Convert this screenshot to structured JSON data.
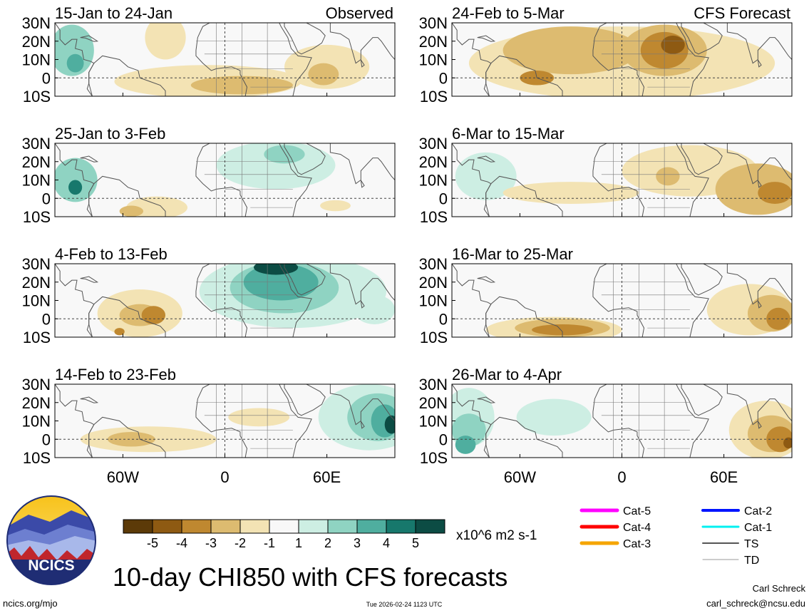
{
  "chart_data": {
    "type": "heatmap",
    "title": "10-day CHI850 with CFS forecasts",
    "colorbar": {
      "ticks": [
        "-5",
        "-4",
        "-3",
        "-2",
        "-1",
        "1",
        "2",
        "3",
        "4",
        "5"
      ],
      "unit": "x10^6 m2 s-1",
      "colors": [
        "#5c3a08",
        "#8e5a12",
        "#bf8830",
        "#ddbb70",
        "#f3e3b4",
        "#f8f8f8",
        "#cdeee3",
        "#8fd3c2",
        "#4fae9f",
        "#17786c",
        "#0c4c44"
      ]
    },
    "axes": {
      "lat_ticks": [
        "30N",
        "20N",
        "10N",
        "0",
        "10S"
      ],
      "lon_ticks": [
        "60W",
        "0",
        "60E"
      ],
      "lat_range": [
        -10,
        30
      ],
      "lon_range": [
        -100,
        100
      ]
    },
    "column_labels": {
      "observed": "Observed",
      "forecast": "CFS Forecast"
    },
    "panels": [
      {
        "period": "15-Jan to 24-Jan",
        "column": "observed",
        "anomalies": [
          {
            "lon": -90,
            "lat": 15,
            "rx": 13,
            "ry": 14,
            "value": 2
          },
          {
            "lon": -88,
            "lat": 8,
            "rx": 5,
            "ry": 5,
            "value": 3
          },
          {
            "lon": -35,
            "lat": 22,
            "rx": 12,
            "ry": 12,
            "value": -1
          },
          {
            "lon": -10,
            "lat": -2,
            "rx": 55,
            "ry": 9,
            "value": -1
          },
          {
            "lon": 10,
            "lat": -4,
            "rx": 30,
            "ry": 5,
            "value": -2
          },
          {
            "lon": 60,
            "lat": 6,
            "rx": 25,
            "ry": 12,
            "value": -1
          },
          {
            "lon": 58,
            "lat": 2,
            "rx": 9,
            "ry": 6,
            "value": -2
          }
        ]
      },
      {
        "period": "25-Jan to 3-Feb",
        "column": "observed",
        "anomalies": [
          {
            "lon": -88,
            "lat": 10,
            "rx": 13,
            "ry": 12,
            "value": 2
          },
          {
            "lon": -88,
            "lat": 6,
            "rx": 4,
            "ry": 4,
            "value": 4
          },
          {
            "lon": -40,
            "lat": -5,
            "rx": 18,
            "ry": 6,
            "value": -1
          },
          {
            "lon": -55,
            "lat": -7,
            "rx": 7,
            "ry": 3,
            "value": -2
          },
          {
            "lon": 30,
            "lat": 18,
            "rx": 35,
            "ry": 13,
            "value": 1
          },
          {
            "lon": 35,
            "lat": 24,
            "rx": 12,
            "ry": 5,
            "value": 2
          },
          {
            "lon": 65,
            "lat": -4,
            "rx": 9,
            "ry": 3,
            "value": -1
          }
        ]
      },
      {
        "period": "4-Feb to 13-Feb",
        "column": "observed",
        "anomalies": [
          {
            "lon": -50,
            "lat": 3,
            "rx": 25,
            "ry": 13,
            "value": -1
          },
          {
            "lon": -50,
            "lat": 2,
            "rx": 12,
            "ry": 6,
            "value": -2
          },
          {
            "lon": -42,
            "lat": 2,
            "rx": 7,
            "ry": 5,
            "value": -3
          },
          {
            "lon": -62,
            "lat": -7,
            "rx": 3,
            "ry": 2,
            "value": -3
          },
          {
            "lon": 40,
            "lat": 15,
            "rx": 55,
            "ry": 20,
            "value": 1
          },
          {
            "lon": 35,
            "lat": 17,
            "rx": 32,
            "ry": 14,
            "value": 2
          },
          {
            "lon": 33,
            "lat": 20,
            "rx": 22,
            "ry": 10,
            "value": 3
          },
          {
            "lon": 30,
            "lat": 28,
            "rx": 13,
            "ry": 4,
            "value": 5
          },
          {
            "lon": 88,
            "lat": 5,
            "rx": 12,
            "ry": 8,
            "value": 1
          }
        ]
      },
      {
        "period": "14-Feb to 23-Feb",
        "column": "observed",
        "anomalies": [
          {
            "lon": -45,
            "lat": 0,
            "rx": 40,
            "ry": 7,
            "value": -1
          },
          {
            "lon": -55,
            "lat": 0,
            "rx": 14,
            "ry": 4,
            "value": -2
          },
          {
            "lon": 20,
            "lat": 12,
            "rx": 18,
            "ry": 5,
            "value": -1
          },
          {
            "lon": 85,
            "lat": 12,
            "rx": 30,
            "ry": 18,
            "value": 1
          },
          {
            "lon": 90,
            "lat": 12,
            "rx": 18,
            "ry": 13,
            "value": 2
          },
          {
            "lon": 94,
            "lat": 10,
            "rx": 8,
            "ry": 9,
            "value": 3
          },
          {
            "lon": 98,
            "lat": 8,
            "rx": 4,
            "ry": 5,
            "value": 5
          }
        ]
      },
      {
        "period": "24-Feb to 5-Mar",
        "column": "forecast",
        "anomalies": [
          {
            "lon": 0,
            "lat": 8,
            "rx": 90,
            "ry": 20,
            "value": -1
          },
          {
            "lon": -30,
            "lat": 15,
            "rx": 40,
            "ry": 13,
            "value": -2
          },
          {
            "lon": 25,
            "lat": 15,
            "rx": 25,
            "ry": 14,
            "value": -2
          },
          {
            "lon": 25,
            "lat": 15,
            "rx": 14,
            "ry": 10,
            "value": -3
          },
          {
            "lon": 30,
            "lat": 18,
            "rx": 7,
            "ry": 5,
            "value": -4
          },
          {
            "lon": -50,
            "lat": 0,
            "rx": 10,
            "ry": 4,
            "value": -3
          }
        ]
      },
      {
        "period": "6-Mar to 15-Mar",
        "column": "forecast",
        "anomalies": [
          {
            "lon": -80,
            "lat": 12,
            "rx": 18,
            "ry": 13,
            "value": 1
          },
          {
            "lon": -30,
            "lat": 3,
            "rx": 40,
            "ry": 6,
            "value": -1
          },
          {
            "lon": 40,
            "lat": 15,
            "rx": 40,
            "ry": 14,
            "value": -1
          },
          {
            "lon": 80,
            "lat": 5,
            "rx": 25,
            "ry": 14,
            "value": -2
          },
          {
            "lon": 90,
            "lat": 3,
            "rx": 10,
            "ry": 6,
            "value": -3
          },
          {
            "lon": 27,
            "lat": 12,
            "rx": 7,
            "ry": 5,
            "value": -2
          }
        ]
      },
      {
        "period": "16-Mar to 25-Mar",
        "column": "forecast",
        "anomalies": [
          {
            "lon": -40,
            "lat": -6,
            "rx": 40,
            "ry": 7,
            "value": -1
          },
          {
            "lon": -35,
            "lat": -5,
            "rx": 28,
            "ry": 5,
            "value": -2
          },
          {
            "lon": -35,
            "lat": -6,
            "rx": 18,
            "ry": 3,
            "value": -3
          },
          {
            "lon": 75,
            "lat": 5,
            "rx": 25,
            "ry": 14,
            "value": -1
          },
          {
            "lon": 88,
            "lat": 3,
            "rx": 14,
            "ry": 10,
            "value": -2
          },
          {
            "lon": 92,
            "lat": 0,
            "rx": 7,
            "ry": 6,
            "value": -3
          }
        ]
      },
      {
        "period": "26-Mar to 4-Apr",
        "column": "forecast",
        "anomalies": [
          {
            "lon": -90,
            "lat": 12,
            "rx": 15,
            "ry": 16,
            "value": 1
          },
          {
            "lon": -90,
            "lat": 5,
            "rx": 10,
            "ry": 9,
            "value": 2
          },
          {
            "lon": -92,
            "lat": -3,
            "rx": 6,
            "ry": 5,
            "value": 3
          },
          {
            "lon": -40,
            "lat": 12,
            "rx": 22,
            "ry": 10,
            "value": 1
          },
          {
            "lon": 85,
            "lat": 5,
            "rx": 22,
            "ry": 16,
            "value": -1
          },
          {
            "lon": 88,
            "lat": 3,
            "rx": 14,
            "ry": 10,
            "value": -2
          },
          {
            "lon": 93,
            "lat": 0,
            "rx": 8,
            "ry": 7,
            "value": -3
          },
          {
            "lon": 98,
            "lat": -2,
            "rx": 3,
            "ry": 3,
            "value": -4
          }
        ]
      }
    ],
    "storm_legend": [
      {
        "label": "Cat-5",
        "color": "#ff00ff",
        "width": 5
      },
      {
        "label": "Cat-4",
        "color": "#ff0000",
        "width": 5
      },
      {
        "label": "Cat-3",
        "color": "#f5a500",
        "width": 5
      },
      {
        "label": "Cat-2",
        "color": "#0014ff",
        "width": 4
      },
      {
        "label": "Cat-1",
        "color": "#00f0f0",
        "width": 3
      },
      {
        "label": "TS",
        "color": "#555555",
        "width": 2
      },
      {
        "label": "TD",
        "color": "#999999",
        "width": 1
      }
    ]
  },
  "logo": {
    "text": "NCICS"
  },
  "footer": {
    "site": "ncics.org/mjo",
    "timestamp": "Tue 2026-02-24 1123 UTC",
    "author": "Carl Schreck",
    "email": "carl_schreck@ncsu.edu"
  }
}
